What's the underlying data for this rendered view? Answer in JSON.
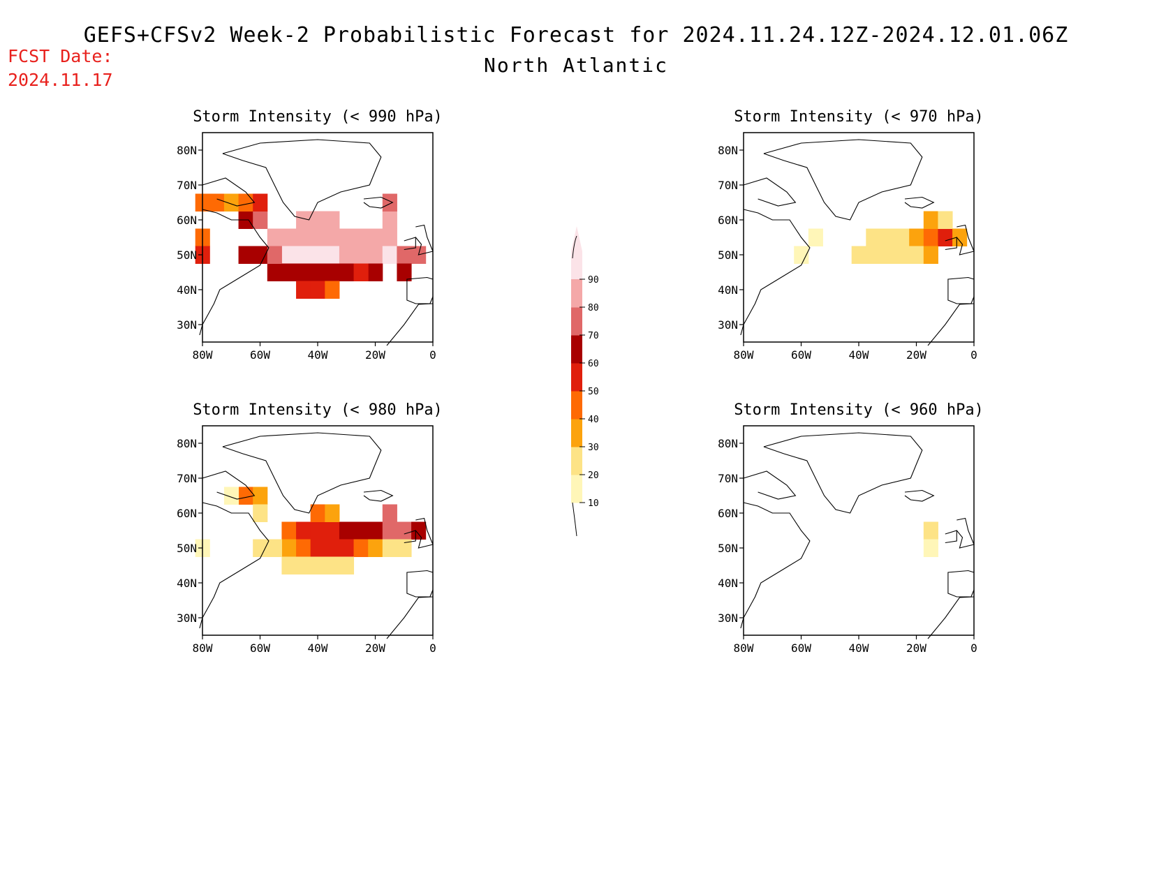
{
  "header": {
    "title": "GEFS+CFSv2 Week-2 Probabilistic Forecast for 2024.11.24.12Z-2024.12.01.06Z",
    "subtitle": "North Atlantic",
    "fcst_label": "FCST Date:",
    "fcst_date": "2024.11.17"
  },
  "axis": {
    "lat_labels": [
      "80N",
      "70N",
      "60N",
      "50N",
      "40N",
      "30N"
    ],
    "lon_labels": [
      "80W",
      "60W",
      "40W",
      "20W",
      "0"
    ]
  },
  "panels": [
    {
      "id": "p990",
      "title": "Storm Intensity (< 990 hPa)"
    },
    {
      "id": "p970",
      "title": "Storm Intensity (< 970 hPa)"
    },
    {
      "id": "p980",
      "title": "Storm Intensity (< 980 hPa)"
    },
    {
      "id": "p960",
      "title": "Storm Intensity (< 960 hPa)"
    }
  ],
  "colorbar": {
    "levels": [
      "10",
      "20",
      "30",
      "40",
      "50",
      "60",
      "70",
      "80",
      "90"
    ],
    "colors": [
      "#fff6b8",
      "#fde386",
      "#fca30d",
      "#fe6a04",
      "#e01f0c",
      "#a80000",
      "#e06868",
      "#f4a8a8",
      "#fbe3e8"
    ]
  },
  "chart_data": {
    "type": "heatmap",
    "units": "probability (%)",
    "lon_range": [
      -80,
      0
    ],
    "lat_range": [
      25,
      85
    ],
    "panels": [
      {
        "title": "Storm Intensity (< 990 hPa)",
        "cells": [
          [
            -80,
            65,
            40
          ],
          [
            -75,
            65,
            40
          ],
          [
            -70,
            65,
            30
          ],
          [
            -65,
            60,
            60
          ],
          [
            -60,
            60,
            70
          ],
          [
            -65,
            65,
            40
          ],
          [
            -60,
            65,
            50
          ],
          [
            -80,
            55,
            40
          ],
          [
            -80,
            50,
            50
          ],
          [
            -60,
            50,
            60
          ],
          [
            -55,
            45,
            60
          ],
          [
            -65,
            50,
            60
          ],
          [
            -55,
            55,
            80
          ],
          [
            -50,
            55,
            80
          ],
          [
            -45,
            55,
            80
          ],
          [
            -40,
            55,
            80
          ],
          [
            -35,
            55,
            80
          ],
          [
            -30,
            55,
            80
          ],
          [
            -25,
            55,
            80
          ],
          [
            -20,
            55,
            80
          ],
          [
            -15,
            55,
            80
          ],
          [
            -50,
            50,
            90
          ],
          [
            -45,
            50,
            90
          ],
          [
            -40,
            50,
            90
          ],
          [
            -35,
            50,
            90
          ],
          [
            -30,
            50,
            80
          ],
          [
            -25,
            50,
            80
          ],
          [
            -20,
            50,
            80
          ],
          [
            -15,
            50,
            90
          ],
          [
            -10,
            50,
            80
          ],
          [
            -55,
            50,
            70
          ],
          [
            -10,
            50,
            70
          ],
          [
            -5,
            50,
            70
          ],
          [
            -20,
            45,
            60
          ],
          [
            -10,
            45,
            60
          ],
          [
            -50,
            45,
            60
          ],
          [
            -45,
            45,
            60
          ],
          [
            -40,
            45,
            60
          ],
          [
            -35,
            45,
            60
          ],
          [
            -30,
            45,
            60
          ],
          [
            -25,
            45,
            50
          ],
          [
            -45,
            40,
            50
          ],
          [
            -40,
            40,
            50
          ],
          [
            -35,
            40,
            40
          ],
          [
            -45,
            60,
            80
          ],
          [
            -40,
            60,
            80
          ],
          [
            -35,
            60,
            80
          ],
          [
            -15,
            60,
            80
          ],
          [
            -15,
            65,
            70
          ]
        ]
      },
      {
        "title": "Storm Intensity (< 970 hPa)",
        "cells": [
          [
            -35,
            55,
            20
          ],
          [
            -30,
            55,
            20
          ],
          [
            -25,
            55,
            20
          ],
          [
            -20,
            55,
            30
          ],
          [
            -15,
            55,
            40
          ],
          [
            -10,
            55,
            50
          ],
          [
            -40,
            50,
            20
          ],
          [
            -35,
            50,
            20
          ],
          [
            -30,
            50,
            20
          ],
          [
            -25,
            50,
            20
          ],
          [
            -20,
            50,
            20
          ],
          [
            -15,
            50,
            30
          ],
          [
            -15,
            60,
            30
          ],
          [
            -10,
            60,
            20
          ],
          [
            -5,
            55,
            30
          ],
          [
            -55,
            55,
            10
          ],
          [
            -60,
            50,
            10
          ]
        ]
      },
      {
        "title": "Storm Intensity (< 980 hPa)",
        "cells": [
          [
            -65,
            65,
            40
          ],
          [
            -60,
            65,
            30
          ],
          [
            -60,
            60,
            20
          ],
          [
            -70,
            65,
            10
          ],
          [
            -50,
            55,
            40
          ],
          [
            -45,
            55,
            50
          ],
          [
            -40,
            55,
            50
          ],
          [
            -35,
            55,
            50
          ],
          [
            -30,
            55,
            60
          ],
          [
            -25,
            55,
            60
          ],
          [
            -20,
            55,
            60
          ],
          [
            -15,
            55,
            70
          ],
          [
            -10,
            55,
            70
          ],
          [
            -5,
            55,
            60
          ],
          [
            -50,
            50,
            30
          ],
          [
            -45,
            50,
            40
          ],
          [
            -40,
            50,
            50
          ],
          [
            -35,
            50,
            50
          ],
          [
            -30,
            50,
            50
          ],
          [
            -25,
            50,
            40
          ],
          [
            -20,
            50,
            30
          ],
          [
            -15,
            50,
            20
          ],
          [
            -10,
            50,
            20
          ],
          [
            -55,
            50,
            20
          ],
          [
            -50,
            45,
            20
          ],
          [
            -45,
            45,
            20
          ],
          [
            -40,
            45,
            20
          ],
          [
            -35,
            45,
            20
          ],
          [
            -30,
            45,
            20
          ],
          [
            -15,
            60,
            70
          ],
          [
            -40,
            60,
            40
          ],
          [
            -35,
            60,
            30
          ],
          [
            -60,
            50,
            20
          ],
          [
            -80,
            50,
            10
          ]
        ]
      },
      {
        "title": "Storm Intensity (< 960 hPa)",
        "cells": [
          [
            -15,
            55,
            20
          ],
          [
            -15,
            50,
            10
          ]
        ]
      }
    ]
  }
}
